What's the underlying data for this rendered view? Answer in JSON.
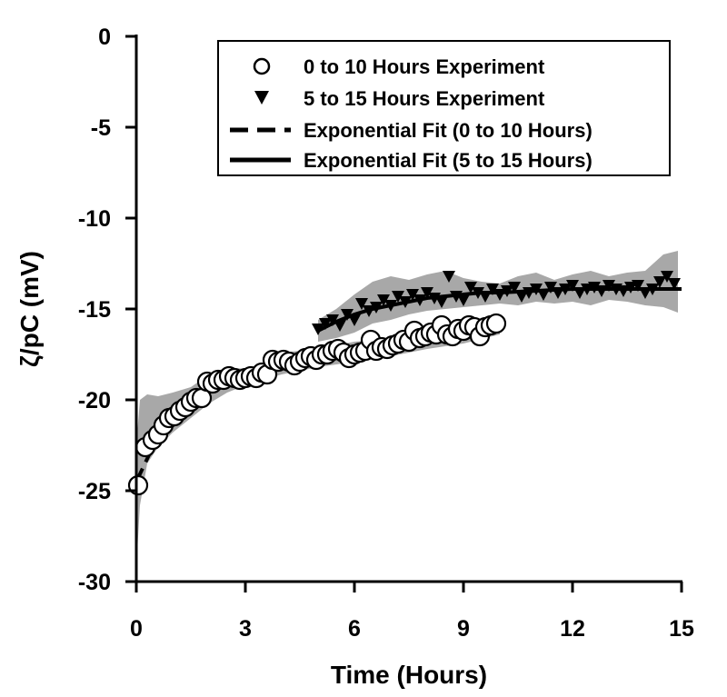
{
  "chart_data": {
    "type": "scatter",
    "xlabel": "Time (Hours)",
    "ylabel": "ζ/pC (mV)",
    "xlim": [
      0,
      15
    ],
    "ylim": [
      -30,
      0
    ],
    "xticks": [
      0,
      3,
      6,
      9,
      12,
      15
    ],
    "xtick_labels": [
      "0",
      "3",
      "6",
      "9",
      "12",
      "15"
    ],
    "yticks": [
      0,
      -5,
      -10,
      -15,
      -20,
      -25,
      -30
    ],
    "ytick_labels": [
      "0",
      "-5",
      "-10",
      "-15",
      "-20",
      "-25",
      "-30"
    ],
    "grid": false,
    "legend_position": "top-right",
    "band_color": "#a8a8a8",
    "series": [
      {
        "name": "0 to 10 Hours Experiment",
        "marker": "open-circle",
        "x": [
          0.05,
          0.25,
          0.45,
          0.6,
          0.75,
          0.9,
          1.05,
          1.2,
          1.35,
          1.5,
          1.65,
          1.8,
          1.95,
          2.1,
          2.25,
          2.4,
          2.55,
          2.7,
          2.85,
          3.0,
          3.15,
          3.3,
          3.45,
          3.6,
          3.75,
          3.9,
          4.05,
          4.2,
          4.35,
          4.5,
          4.65,
          4.8,
          4.95,
          5.1,
          5.25,
          5.4,
          5.55,
          5.7,
          5.85,
          6.0,
          6.15,
          6.3,
          6.45,
          6.6,
          6.75,
          6.9,
          7.05,
          7.2,
          7.35,
          7.5,
          7.65,
          7.8,
          7.95,
          8.1,
          8.25,
          8.4,
          8.55,
          8.7,
          8.85,
          9.0,
          9.15,
          9.3,
          9.45,
          9.6,
          9.75,
          9.9
        ],
        "y": [
          -24.7,
          -22.6,
          -22.2,
          -21.9,
          -21.4,
          -21.0,
          -20.9,
          -20.6,
          -20.4,
          -20.1,
          -19.9,
          -19.9,
          -19.0,
          -19.1,
          -18.9,
          -18.9,
          -18.7,
          -18.8,
          -18.9,
          -18.8,
          -18.7,
          -18.8,
          -18.5,
          -18.6,
          -17.8,
          -17.9,
          -17.8,
          -17.9,
          -18.1,
          -17.9,
          -17.7,
          -17.6,
          -17.8,
          -17.5,
          -17.5,
          -17.3,
          -17.2,
          -17.4,
          -17.7,
          -17.5,
          -17.4,
          -17.3,
          -16.7,
          -17.3,
          -17.1,
          -17.2,
          -17.0,
          -16.9,
          -16.7,
          -16.8,
          -16.2,
          -16.6,
          -16.5,
          -16.3,
          -16.4,
          -15.9,
          -16.4,
          -16.5,
          -16.1,
          -16.2,
          -15.9,
          -16.0,
          -16.5,
          -16.0,
          -15.9,
          -15.8
        ]
      },
      {
        "name": "5 to 15 Hours Experiment",
        "marker": "filled-down-triangle",
        "x": [
          5.0,
          5.2,
          5.4,
          5.6,
          5.8,
          6.0,
          6.2,
          6.4,
          6.6,
          6.8,
          7.0,
          7.2,
          7.4,
          7.6,
          7.8,
          8.0,
          8.2,
          8.4,
          8.6,
          8.8,
          9.0,
          9.2,
          9.4,
          9.6,
          9.8,
          10.0,
          10.2,
          10.4,
          10.6,
          10.8,
          11.0,
          11.2,
          11.4,
          11.6,
          11.8,
          12.0,
          12.2,
          12.4,
          12.6,
          12.8,
          13.0,
          13.2,
          13.4,
          13.6,
          13.8,
          14.0,
          14.2,
          14.4,
          14.6,
          14.8
        ],
        "y": [
          -16.1,
          -15.8,
          -15.6,
          -15.9,
          -15.3,
          -15.6,
          -14.7,
          -15.1,
          -14.9,
          -14.5,
          -14.8,
          -14.3,
          -14.6,
          -14.2,
          -14.5,
          -14.1,
          -14.4,
          -14.6,
          -13.2,
          -14.3,
          -14.5,
          -13.8,
          -14.1,
          -14.3,
          -13.9,
          -14.2,
          -14.0,
          -13.8,
          -14.3,
          -14.1,
          -13.9,
          -14.2,
          -13.8,
          -14.1,
          -13.9,
          -13.7,
          -14.1,
          -13.9,
          -13.8,
          -14.0,
          -13.7,
          -13.9,
          -14.0,
          -13.8,
          -13.7,
          -14.1,
          -13.9,
          -13.5,
          -13.2,
          -13.6
        ]
      },
      {
        "name": "Exponential Fit (0 to 10 Hours)",
        "style": "dashed",
        "x": [
          0,
          0.5,
          1,
          1.5,
          2,
          2.5,
          3,
          3.5,
          4,
          4.5,
          5,
          5.5,
          6,
          6.5,
          7,
          7.5,
          8,
          8.5,
          9,
          9.5,
          10
        ],
        "y": [
          -24.5,
          -22.4,
          -21.2,
          -20.3,
          -19.6,
          -19.1,
          -18.7,
          -18.4,
          -18.1,
          -17.9,
          -17.6,
          -17.4,
          -17.2,
          -17.0,
          -16.9,
          -16.7,
          -16.6,
          -16.4,
          -16.3,
          -16.1,
          -16.0
        ]
      },
      {
        "name": "Exponential Fit (5 to 15 Hours)",
        "style": "solid",
        "x": [
          5,
          5.5,
          6,
          6.5,
          7,
          7.5,
          8,
          8.5,
          9,
          9.5,
          10,
          11,
          12,
          13,
          14,
          15
        ],
        "y": [
          -16.2,
          -15.7,
          -15.3,
          -15.0,
          -14.8,
          -14.6,
          -14.4,
          -14.3,
          -14.2,
          -14.1,
          -14.1,
          -14.0,
          -13.9,
          -13.9,
          -13.9,
          -13.9
        ]
      }
    ],
    "bands": [
      {
        "x": [
          0,
          0.1,
          0.3,
          0.6,
          1,
          1.5,
          2,
          2.5,
          3,
          3.5,
          4,
          5,
          6,
          7,
          8,
          9,
          10
        ],
        "lower": [
          -29.2,
          -25.8,
          -23.5,
          -22.6,
          -21.8,
          -21.0,
          -20.2,
          -19.6,
          -19.2,
          -18.9,
          -18.6,
          -18.2,
          -17.9,
          -17.6,
          -17.2,
          -16.9,
          -16.4
        ],
        "upper": [
          -22.5,
          -20.0,
          -19.7,
          -19.8,
          -19.6,
          -19.3,
          -18.6,
          -18.2,
          -18.3,
          -18.0,
          -17.4,
          -17.2,
          -16.8,
          -16.6,
          -16.0,
          -15.7,
          -15.4
        ]
      },
      {
        "x": [
          5,
          5.5,
          6,
          6.5,
          7,
          7.5,
          8,
          8.5,
          9,
          9.5,
          10,
          10.5,
          11,
          11.5,
          12,
          12.5,
          13,
          13.5,
          14,
          14.5,
          14.9
        ],
        "lower": [
          -16.8,
          -16.6,
          -16.3,
          -15.8,
          -15.6,
          -15.3,
          -15.1,
          -15.0,
          -14.9,
          -14.8,
          -14.7,
          -14.8,
          -14.6,
          -14.7,
          -14.6,
          -14.8,
          -14.5,
          -14.6,
          -14.8,
          -14.9,
          -15.2
        ],
        "upper": [
          -15.6,
          -15.0,
          -14.2,
          -13.5,
          -13.2,
          -13.4,
          -13.1,
          -12.9,
          -13.3,
          -13.5,
          -13.6,
          -13.2,
          -13.0,
          -13.4,
          -13.1,
          -12.9,
          -13.2,
          -13.0,
          -12.9,
          -12.0,
          -11.8
        ]
      }
    ]
  }
}
